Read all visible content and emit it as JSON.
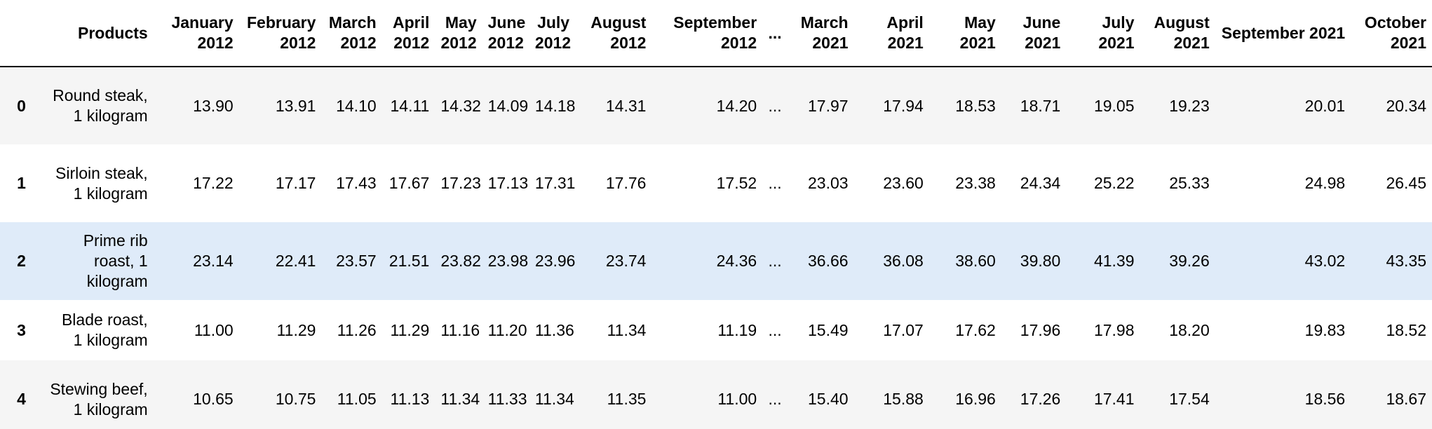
{
  "table": {
    "index_header": "",
    "columns": [
      "Products",
      "January 2012",
      "February 2012",
      "March 2012",
      "April 2012",
      "May 2012",
      "June 2012",
      "July 2012",
      "August 2012",
      "September 2012",
      "...",
      "March 2021",
      "April 2021",
      "May 2021",
      "June 2021",
      "July 2021",
      "August 2021",
      "September 2021",
      "October 2021"
    ],
    "rows": [
      {
        "index": "0",
        "cells": [
          "Round steak, 1 kilogram",
          "13.90",
          "13.91",
          "14.10",
          "14.11",
          "14.32",
          "14.09",
          "14.18",
          "14.31",
          "14.20",
          "...",
          "17.97",
          "17.94",
          "18.53",
          "18.71",
          "19.05",
          "19.23",
          "20.01",
          "20.34"
        ]
      },
      {
        "index": "1",
        "cells": [
          "Sirloin steak, 1 kilogram",
          "17.22",
          "17.17",
          "17.43",
          "17.67",
          "17.23",
          "17.13",
          "17.31",
          "17.76",
          "17.52",
          "...",
          "23.03",
          "23.60",
          "23.38",
          "24.34",
          "25.22",
          "25.33",
          "24.98",
          "26.45"
        ]
      },
      {
        "index": "2",
        "cells": [
          "Prime rib roast, 1 kilogram",
          "23.14",
          "22.41",
          "23.57",
          "21.51",
          "23.82",
          "23.98",
          "23.96",
          "23.74",
          "24.36",
          "...",
          "36.66",
          "36.08",
          "38.60",
          "39.80",
          "41.39",
          "39.26",
          "43.02",
          "43.35"
        ]
      },
      {
        "index": "3",
        "cells": [
          "Blade roast, 1 kilogram",
          "11.00",
          "11.29",
          "11.26",
          "11.29",
          "11.16",
          "11.20",
          "11.36",
          "11.34",
          "11.19",
          "...",
          "15.49",
          "17.07",
          "17.62",
          "17.96",
          "17.98",
          "18.20",
          "19.83",
          "18.52"
        ]
      },
      {
        "index": "4",
        "cells": [
          "Stewing beef, 1 kilogram",
          "10.65",
          "10.75",
          "11.05",
          "11.13",
          "11.34",
          "11.33",
          "11.34",
          "11.35",
          "11.00",
          "...",
          "15.40",
          "15.88",
          "16.96",
          "17.26",
          "17.41",
          "17.54",
          "18.56",
          "18.67"
        ]
      }
    ]
  },
  "colors": {
    "row_stripe": "#f5f5f5",
    "row_hover": "#dfebf9",
    "header_border": "#000000"
  }
}
